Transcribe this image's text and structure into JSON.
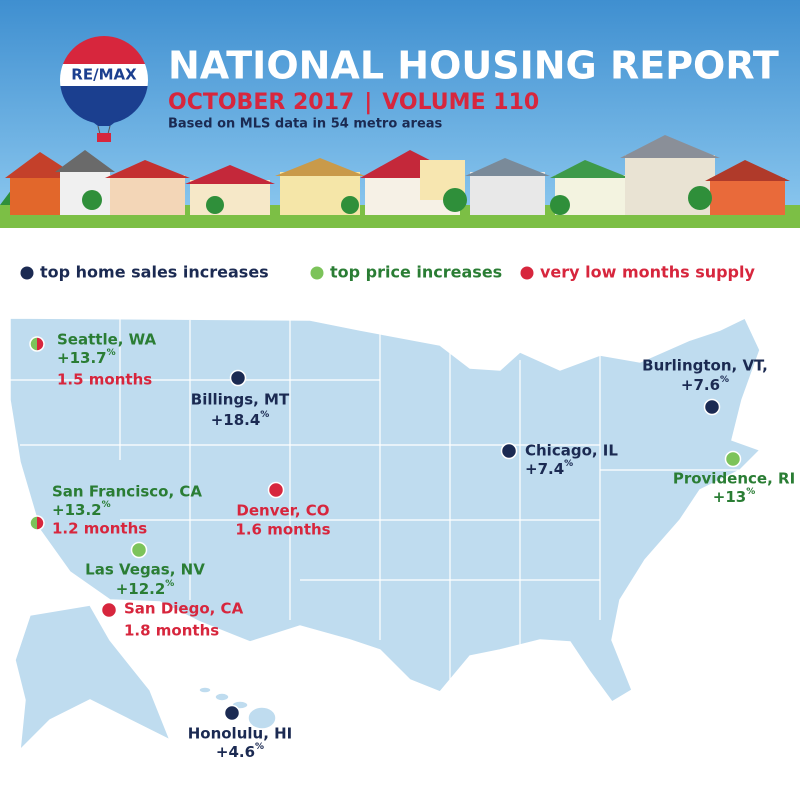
{
  "header": {
    "logo": "RE/MAX",
    "title": "NATIONAL HOUSING REPORT",
    "subtitle_left": "OCTOBER 2017",
    "subtitle_separator": "|",
    "subtitle_right": "VOLUME 110",
    "note": "Based on MLS data in 54 metro areas"
  },
  "legend": [
    {
      "label": "top home sales increases",
      "dot_color": "#1b2a52",
      "text_color": "#1b2a52"
    },
    {
      "label": "top price increases",
      "dot_color": "#7cc35a",
      "text_color": "#2a7d34"
    },
    {
      "label": "very low months supply",
      "dot_color": "#d7263d",
      "text_color": "#d7263d"
    }
  ],
  "cities": [
    {
      "name": "Seattle, WA",
      "categories": [
        1,
        2
      ],
      "change": "+13.7",
      "change_unit": "%",
      "supply": "1.5 months"
    },
    {
      "name": "Billings, MT",
      "categories": [
        0
      ],
      "change": "+18.4",
      "change_unit": "%"
    },
    {
      "name": "Burlington, VT,",
      "categories": [
        0
      ],
      "change": "+7.6",
      "change_unit": "%"
    },
    {
      "name": "Chicago, IL",
      "categories": [
        0
      ],
      "change": "+7.4",
      "change_unit": "%"
    },
    {
      "name": "Providence, RI",
      "categories": [
        1
      ],
      "change": "+13",
      "change_unit": "%"
    },
    {
      "name": "Denver, CO",
      "categories": [
        2
      ],
      "supply": "1.6 months"
    },
    {
      "name": "San Francisco, CA",
      "categories": [
        1,
        2
      ],
      "change": "+13.2",
      "change_unit": "%",
      "supply": "1.2 months"
    },
    {
      "name": "Las Vegas, NV",
      "categories": [
        1
      ],
      "change": "+12.2",
      "change_unit": "%"
    },
    {
      "name": "San Diego, CA",
      "categories": [
        2
      ],
      "supply": "1.8 months"
    },
    {
      "name": "Honolulu, HI",
      "categories": [
        0
      ],
      "change": "+4.6",
      "change_unit": "%"
    }
  ]
}
